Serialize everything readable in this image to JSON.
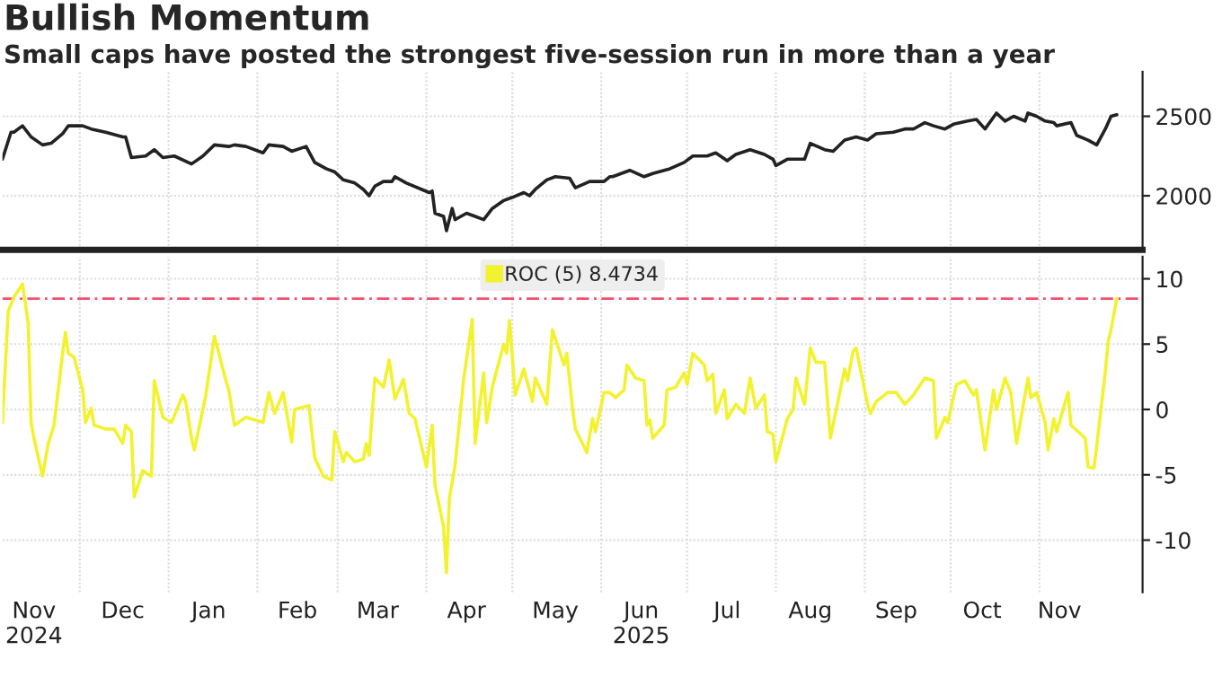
{
  "chart_data": [
    {
      "type": "line",
      "title": "Bullish Momentum",
      "subtitle": "Small caps have posted the strongest five-session run in more than a year",
      "x": [
        "2024-11-04",
        "2024-11-07",
        "2024-11-08",
        "2024-11-11",
        "2024-11-14",
        "2024-11-18",
        "2024-11-21",
        "2024-11-25",
        "2024-11-27",
        "2024-12-02",
        "2024-12-05",
        "2024-12-10",
        "2024-12-16",
        "2024-12-17",
        "2024-12-19",
        "2024-12-24",
        "2024-12-27",
        "2024-12-30",
        "2025-01-03",
        "2025-01-09",
        "2025-01-13",
        "2025-01-17",
        "2025-01-22",
        "2025-01-24",
        "2025-01-28",
        "2025-02-03",
        "2025-02-05",
        "2025-02-10",
        "2025-02-13",
        "2025-02-18",
        "2025-02-21",
        "2025-02-25",
        "2025-02-28",
        "2025-03-03",
        "2025-03-07",
        "2025-03-10",
        "2025-03-12",
        "2025-03-14",
        "2025-03-17",
        "2025-03-20",
        "2025-03-21",
        "2025-03-25",
        "2025-04-02",
        "2025-04-03",
        "2025-04-04",
        "2025-04-07",
        "2025-04-08",
        "2025-04-10",
        "2025-04-11",
        "2025-04-15",
        "2025-04-18",
        "2025-04-21",
        "2025-04-24",
        "2025-04-28",
        "2025-05-01",
        "2025-05-05",
        "2025-05-07",
        "2025-05-09",
        "2025-05-13",
        "2025-05-16",
        "2025-05-21",
        "2025-05-23",
        "2025-05-28",
        "2025-06-02",
        "2025-06-04",
        "2025-06-05",
        "2025-06-11",
        "2025-06-16",
        "2025-06-19",
        "2025-06-25",
        "2025-06-30",
        "2025-07-03",
        "2025-07-08",
        "2025-07-11",
        "2025-07-15",
        "2025-07-18",
        "2025-07-23",
        "2025-07-28",
        "2025-07-31",
        "2025-08-01",
        "2025-08-05",
        "2025-08-11",
        "2025-08-13",
        "2025-08-18",
        "2025-08-21",
        "2025-08-25",
        "2025-08-29",
        "2025-09-02",
        "2025-09-05",
        "2025-09-11",
        "2025-09-15",
        "2025-09-18",
        "2025-09-22",
        "2025-09-25",
        "2025-09-29",
        "2025-10-02",
        "2025-10-07",
        "2025-10-10",
        "2025-10-13",
        "2025-10-17",
        "2025-10-20",
        "2025-10-23",
        "2025-10-27",
        "2025-10-28",
        "2025-10-31",
        "2025-11-03",
        "2025-11-06",
        "2025-11-07",
        "2025-11-12",
        "2025-11-14",
        "2025-11-18",
        "2025-11-21",
        "2025-11-24",
        "2025-11-26",
        "2025-11-28"
      ],
      "series": [
        {
          "color": "#222222",
          "values": [
            2230,
            2400,
            2400,
            2440,
            2370,
            2320,
            2330,
            2390,
            2440,
            2440,
            2420,
            2400,
            2370,
            2370,
            2240,
            2250,
            2290,
            2240,
            2250,
            2200,
            2250,
            2320,
            2310,
            2320,
            2310,
            2270,
            2320,
            2310,
            2280,
            2310,
            2210,
            2170,
            2150,
            2100,
            2080,
            2040,
            2000,
            2060,
            2090,
            2090,
            2120,
            2080,
            2020,
            2030,
            1890,
            1870,
            1780,
            1920,
            1850,
            1890,
            1870,
            1850,
            1920,
            1970,
            1990,
            2020,
            2000,
            2040,
            2100,
            2120,
            2110,
            2050,
            2090,
            2090,
            2120,
            2120,
            2160,
            2120,
            2140,
            2170,
            2210,
            2250,
            2250,
            2270,
            2220,
            2260,
            2290,
            2260,
            2230,
            2190,
            2230,
            2230,
            2330,
            2290,
            2280,
            2350,
            2370,
            2350,
            2390,
            2400,
            2420,
            2420,
            2460,
            2440,
            2420,
            2450,
            2470,
            2480,
            2420,
            2520,
            2470,
            2500,
            2470,
            2520,
            2500,
            2470,
            2460,
            2440,
            2460,
            2380,
            2350,
            2320,
            2420,
            2500,
            2510
          ]
        }
      ],
      "xlim": [
        "2024-11-04",
        "2025-12-07"
      ],
      "ylim": [
        1660,
        2780
      ],
      "yticks": [
        2000,
        2500
      ],
      "xticks": [
        {
          "value": "2024-12-01",
          "label": null
        },
        {
          "value": "2025-01-01",
          "label": null
        },
        {
          "value": "2025-02-01",
          "label": null
        },
        {
          "value": "2025-03-01",
          "label": null
        },
        {
          "value": "2025-04-01",
          "label": null
        },
        {
          "value": "2025-05-01",
          "label": null
        },
        {
          "value": "2025-06-01",
          "label": null
        },
        {
          "value": "2025-07-01",
          "label": null
        },
        {
          "value": "2025-08-01",
          "label": null
        },
        {
          "value": "2025-09-01",
          "label": null
        },
        {
          "value": "2025-10-01",
          "label": null
        },
        {
          "value": "2025-11-01",
          "label": null
        }
      ],
      "tick_labels": "y",
      "grid": true
    },
    {
      "type": "line",
      "x": [
        "2024-11-04",
        "2024-11-06",
        "2024-11-08",
        "2024-11-11",
        "2024-11-13",
        "2024-11-14",
        "2024-11-15",
        "2024-11-18",
        "2024-11-20",
        "2024-11-22",
        "2024-11-25",
        "2024-11-26",
        "2024-11-27",
        "2024-11-29",
        "2024-12-02",
        "2024-12-03",
        "2024-12-05",
        "2024-12-06",
        "2024-12-10",
        "2024-12-13",
        "2024-12-16",
        "2024-12-17",
        "2024-12-19",
        "2024-12-20",
        "2024-12-23",
        "2024-12-26",
        "2024-12-27",
        "2024-12-30",
        "2025-01-02",
        "2025-01-06",
        "2025-01-07",
        "2025-01-09",
        "2025-01-10",
        "2025-01-14",
        "2025-01-17",
        "2025-01-21",
        "2025-01-22",
        "2025-01-24",
        "2025-01-28",
        "2025-02-03",
        "2025-02-05",
        "2025-02-07",
        "2025-02-10",
        "2025-02-13",
        "2025-02-14",
        "2025-02-19",
        "2025-02-21",
        "2025-02-24",
        "2025-02-27",
        "2025-02-28",
        "2025-03-03",
        "2025-03-04",
        "2025-03-07",
        "2025-03-10",
        "2025-03-11",
        "2025-03-12",
        "2025-03-14",
        "2025-03-17",
        "2025-03-19",
        "2025-03-21",
        "2025-03-24",
        "2025-03-26",
        "2025-03-28",
        "2025-04-01",
        "2025-04-03",
        "2025-04-04",
        "2025-04-07",
        "2025-04-08",
        "2025-04-09",
        "2025-04-11",
        "2025-04-14",
        "2025-04-17",
        "2025-04-18",
        "2025-04-21",
        "2025-04-22",
        "2025-04-24",
        "2025-04-28",
        "2025-04-29",
        "2025-04-30",
        "2025-05-01",
        "2025-05-02",
        "2025-05-05",
        "2025-05-08",
        "2025-05-09",
        "2025-05-13",
        "2025-05-15",
        "2025-05-19",
        "2025-05-20",
        "2025-05-22",
        "2025-05-23",
        "2025-05-27",
        "2025-05-29",
        "2025-05-30",
        "2025-06-02",
        "2025-06-04",
        "2025-06-06",
        "2025-06-09",
        "2025-06-10",
        "2025-06-13",
        "2025-06-16",
        "2025-06-17",
        "2025-06-18",
        "2025-06-19",
        "2025-06-23",
        "2025-06-24",
        "2025-06-27",
        "2025-06-30",
        "2025-07-01",
        "2025-07-03",
        "2025-07-07",
        "2025-07-08",
        "2025-07-10",
        "2025-07-11",
        "2025-07-14",
        "2025-07-15",
        "2025-07-18",
        "2025-07-21",
        "2025-07-23",
        "2025-07-25",
        "2025-07-28",
        "2025-07-29",
        "2025-07-31",
        "2025-08-01",
        "2025-08-05",
        "2025-08-07",
        "2025-08-08",
        "2025-08-11",
        "2025-08-13",
        "2025-08-15",
        "2025-08-18",
        "2025-08-20",
        "2025-08-25",
        "2025-08-26",
        "2025-08-28",
        "2025-08-29",
        "2025-09-02",
        "2025-09-03",
        "2025-09-05",
        "2025-09-09",
        "2025-09-12",
        "2025-09-15",
        "2025-09-18",
        "2025-09-22",
        "2025-09-25",
        "2025-09-26",
        "2025-09-29",
        "2025-09-30",
        "2025-10-03",
        "2025-10-06",
        "2025-10-09",
        "2025-10-10",
        "2025-10-13",
        "2025-10-16",
        "2025-10-17",
        "2025-10-20",
        "2025-10-22",
        "2025-10-24",
        "2025-10-28",
        "2025-10-29",
        "2025-10-31",
        "2025-11-03",
        "2025-11-04",
        "2025-11-06",
        "2025-11-07",
        "2025-11-11",
        "2025-11-12",
        "2025-11-17",
        "2025-11-18",
        "2025-11-20",
        "2025-11-21",
        "2025-11-24",
        "2025-11-25",
        "2025-11-26",
        "2025-11-28"
      ],
      "series": [
        {
          "name": "ROC (5) 8.4734",
          "color": "#f2f230",
          "values": [
            -1.0,
            7.5,
            8.6,
            9.6,
            6.6,
            -1.0,
            -2.2,
            -5.1,
            -2.6,
            -1.2,
            4.3,
            5.9,
            4.3,
            4.0,
            1.5,
            -1.0,
            0.1,
            -1.2,
            -1.5,
            -1.5,
            -2.6,
            -1.2,
            -1.7,
            -6.7,
            -4.7,
            -5.1,
            2.2,
            -0.6,
            -1.0,
            1.1,
            0.6,
            -2.2,
            -3.1,
            1.1,
            5.6,
            2.2,
            1.5,
            -1.2,
            -0.6,
            -1.0,
            1.3,
            -0.3,
            1.3,
            -2.5,
            0.0,
            0.3,
            -3.7,
            -5.1,
            -5.4,
            -1.7,
            -4.0,
            -3.3,
            -4.0,
            -3.8,
            -2.6,
            -3.5,
            2.4,
            1.7,
            3.8,
            0.8,
            2.3,
            -0.3,
            -0.7,
            -4.4,
            -1.2,
            -5.8,
            -9.0,
            -12.5,
            -6.8,
            -4.3,
            2.3,
            6.9,
            -2.6,
            2.8,
            -1.0,
            1.7,
            5.0,
            4.3,
            6.8,
            4.0,
            1.1,
            3.1,
            0.6,
            2.4,
            0.4,
            6.1,
            3.4,
            4.3,
            0.1,
            -1.5,
            -3.3,
            -0.7,
            -1.7,
            1.3,
            1.3,
            0.9,
            1.5,
            3.4,
            2.4,
            2.2,
            -1.2,
            -0.8,
            -2.2,
            -1.2,
            1.5,
            1.7,
            2.8,
            1.9,
            4.3,
            3.4,
            2.2,
            2.7,
            -0.3,
            1.5,
            -0.7,
            0.4,
            -0.3,
            2.4,
            0.1,
            1.1,
            -1.7,
            -1.9,
            -4.0,
            -0.7,
            0.0,
            2.4,
            0.4,
            4.7,
            3.6,
            3.6,
            -2.2,
            3.1,
            2.2,
            4.5,
            4.7,
            0.4,
            -0.3,
            0.6,
            1.3,
            1.3,
            0.4,
            1.1,
            2.4,
            2.2,
            -2.2,
            -0.6,
            -1.0,
            1.9,
            2.2,
            1.1,
            1.5,
            -3.1,
            1.5,
            0.0,
            2.4,
            1.3,
            -2.6,
            2.4,
            0.9,
            1.3,
            -1.0,
            -3.1,
            -0.7,
            -1.7,
            1.3,
            -1.2,
            -2.2,
            -4.4,
            -4.5,
            -2.8,
            2.9,
            5.2,
            6.1,
            8.5
          ]
        }
      ],
      "xlim": [
        "2024-11-04",
        "2025-12-07"
      ],
      "ylim": [
        -14,
        11.7
      ],
      "yticks": [
        -10,
        -5,
        0,
        5,
        10
      ],
      "xticks": [
        {
          "value": "2024-11-15",
          "label": "Nov\n2024"
        },
        {
          "value": "2024-12-16",
          "label": "Dec"
        },
        {
          "value": "2025-01-15",
          "label": "Jan"
        },
        {
          "value": "2025-02-15",
          "label": "Feb"
        },
        {
          "value": "2025-03-15",
          "label": "Mar"
        },
        {
          "value": "2025-04-15",
          "label": "Apr"
        },
        {
          "value": "2025-05-16",
          "label": "May"
        },
        {
          "value": "2025-06-15",
          "label": "Jun\n2025"
        },
        {
          "value": "2025-07-15",
          "label": "Jul"
        },
        {
          "value": "2025-08-13",
          "label": "Aug"
        },
        {
          "value": "2025-09-12",
          "label": "Sep"
        },
        {
          "value": "2025-10-12",
          "label": "Oct"
        },
        {
          "value": "2025-11-08",
          "label": "Nov"
        },
        {
          "value": "2024-12-01",
          "label": null
        },
        {
          "value": "2025-01-01",
          "label": null
        },
        {
          "value": "2025-02-01",
          "label": null
        },
        {
          "value": "2025-03-01",
          "label": null
        },
        {
          "value": "2025-04-01",
          "label": null
        },
        {
          "value": "2025-05-01",
          "label": null
        },
        {
          "value": "2025-06-01",
          "label": null
        },
        {
          "value": "2025-07-01",
          "label": null
        },
        {
          "value": "2025-08-01",
          "label": null
        },
        {
          "value": "2025-09-01",
          "label": null
        },
        {
          "value": "2025-10-01",
          "label": null
        },
        {
          "value": "2025-11-01",
          "label": null
        }
      ],
      "ref_lines": [
        {
          "axis": "y",
          "value": 8.4734,
          "color": "#f0506e",
          "line_style": "dashed"
        }
      ],
      "grid": true,
      "legend": "top"
    }
  ]
}
